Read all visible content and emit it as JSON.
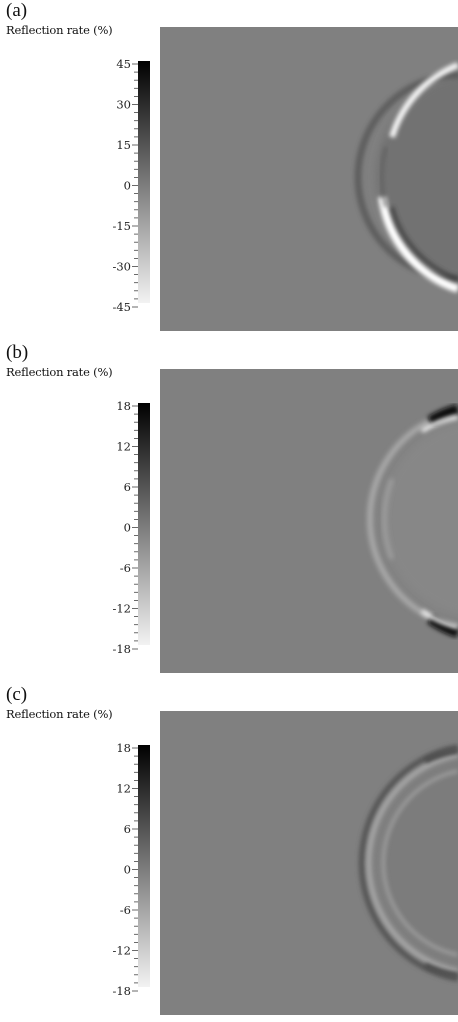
{
  "chart_data": [
    {
      "type": "heatmap",
      "panel_label": "(a)",
      "colorbar": {
        "title": "Reflection rate (%)",
        "ticks": [
          "45",
          "30",
          "15",
          "0",
          "-15",
          "-30",
          "-45"
        ],
        "range": [
          -45,
          45
        ],
        "colormap": "black (max) to white (min) grayscale"
      },
      "feature": "semicircular wave front on right side, bright (negative) on lower rim, dark (positive) inner band"
    },
    {
      "type": "heatmap",
      "panel_label": "(b)",
      "colorbar": {
        "title": "Reflection rate (%)",
        "ticks": [
          "18",
          "12",
          "6",
          "0",
          "-6",
          "-12",
          "-18"
        ],
        "range": [
          -18,
          18
        ],
        "colormap": "black (max) to white (min) grayscale"
      },
      "feature": "semicircular wave front on right side, dark (positive) at top-right and bottom-right ends, light rim"
    },
    {
      "type": "heatmap",
      "panel_label": "(c)",
      "colorbar": {
        "title": "Reflection rate (%)",
        "ticks": [
          "18",
          "12",
          "6",
          "0",
          "-6",
          "-12",
          "-18"
        ],
        "range": [
          -18,
          18
        ],
        "colormap": "black (max) to white (min) grayscale"
      },
      "feature": "double semicircular wave front on right side, weak alternating dark/light rings"
    }
  ],
  "colors": {
    "field_background": "#808080",
    "colorbar_max": "#000000",
    "colorbar_min": "#f2f2f2"
  }
}
